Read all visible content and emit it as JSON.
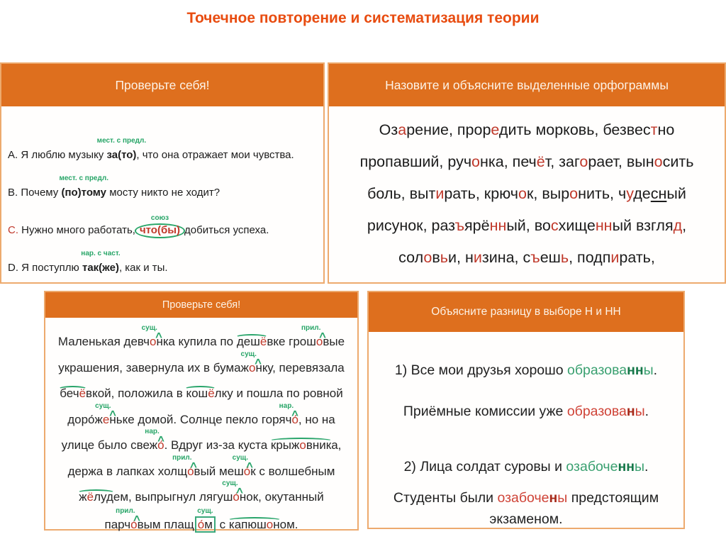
{
  "title": "Точечное повторение и систематизация теории",
  "colors": {
    "title_red": "#e84c10",
    "header_orange": "#de6f1e",
    "panel_border": "#edaa6e",
    "highlight_red": "#c0392b",
    "annotation_green": "#27a567",
    "word_green": "#3aa070",
    "word_green_bold": "#17784a",
    "word_red": "#cf4337",
    "word_red_bold": "#a62a1a"
  },
  "panels": {
    "quiz": {
      "header": "Проверьте себя!",
      "lines": [
        [
          {
            "t": "A. Я люблю музыку "
          },
          {
            "t": "за(то)",
            "b": true,
            "ann": "мест. с предл."
          },
          {
            "t": ", что она отражает мои чувства."
          }
        ],
        [
          {
            "t": "B. Почему "
          },
          {
            "t": "(по)тому",
            "b": true,
            "ann": "мест. с предл."
          },
          {
            "t": " мосту никто не ходит?"
          }
        ],
        [
          {
            "t": "C.",
            "c": "red"
          },
          {
            "t": " Нужно много работать,"
          },
          {
            "ellipse": true,
            "ann": "союз",
            "parts": [
              {
                "t": "что(бы)",
                "c": "red",
                "b": true
              }
            ]
          },
          {
            "t": "добиться успеха."
          }
        ],
        [
          {
            "t": "D. Я поступлю "
          },
          {
            "t": "так(же)",
            "b": true,
            "ann": "нар. с част."
          },
          {
            "t": ", как и ты."
          }
        ]
      ]
    },
    "orthograms": {
      "header": "Назовите и объясните выделенные орфограммы",
      "lines": [
        [
          {
            "t": "Оз"
          },
          {
            "t": "а",
            "c": "red"
          },
          {
            "t": "рение, прор"
          },
          {
            "t": "е",
            "c": "red"
          },
          {
            "t": "дить морковь, безвес"
          },
          {
            "t": "т",
            "c": "red"
          },
          {
            "t": "но"
          }
        ],
        [
          {
            "t": "пропавший, руч"
          },
          {
            "t": "о",
            "c": "red"
          },
          {
            "t": "нка, печ"
          },
          {
            "t": "ё",
            "c": "red"
          },
          {
            "t": "т, заг"
          },
          {
            "t": "о",
            "c": "red"
          },
          {
            "t": "рает, вын"
          },
          {
            "t": "о",
            "c": "red"
          },
          {
            "t": "сить"
          }
        ],
        [
          {
            "t": "боль, выт"
          },
          {
            "t": "и",
            "c": "red"
          },
          {
            "t": "рать, крюч"
          },
          {
            "t": "о",
            "c": "red"
          },
          {
            "t": "к, выр"
          },
          {
            "t": "о",
            "c": "red"
          },
          {
            "t": "нить, ч"
          },
          {
            "t": "у",
            "c": "red"
          },
          {
            "t": "де"
          },
          {
            "t": "сн",
            "u": true
          },
          {
            "t": "ый"
          }
        ],
        [
          {
            "t": "рисунок, раз"
          },
          {
            "t": "ъ",
            "c": "red"
          },
          {
            "t": "ярё"
          },
          {
            "t": "нн",
            "c": "red"
          },
          {
            "t": "ый, во"
          },
          {
            "t": "с",
            "c": "red"
          },
          {
            "t": "хище"
          },
          {
            "t": "нн",
            "c": "red"
          },
          {
            "t": "ый взгля"
          },
          {
            "t": "д",
            "c": "red"
          },
          {
            "t": ","
          }
        ],
        [
          {
            "t": "сол"
          },
          {
            "t": "о",
            "c": "red"
          },
          {
            "t": "в"
          },
          {
            "t": "ь",
            "c": "red"
          },
          {
            "t": "и, н"
          },
          {
            "t": "и",
            "c": "red"
          },
          {
            "t": "зина, с"
          },
          {
            "t": "ъ",
            "c": "red"
          },
          {
            "t": "еш"
          },
          {
            "t": "ь",
            "c": "red"
          },
          {
            "t": ", подп"
          },
          {
            "t": "и",
            "c": "red"
          },
          {
            "t": "рать,"
          }
        ]
      ]
    },
    "dictation": {
      "header": "Проверьте себя!",
      "lines": [
        [
          {
            "t": "Маленькая девч"
          },
          {
            "ann": "сущ.",
            "caret": true,
            "parts": [
              {
                "t": "о",
                "c": "red"
              },
              {
                "t": "нк"
              }
            ]
          },
          {
            "t": "а купила по "
          },
          {
            "arc": true,
            "parts": [
              {
                "t": "деш"
              },
              {
                "t": "ё",
                "c": "red"
              }
            ]
          },
          {
            "t": "вке грош"
          },
          {
            "ann": "прил.",
            "caret": true,
            "parts": [
              {
                "t": "о",
                "c": "red"
              },
              {
                "t": "в"
              }
            ]
          },
          {
            "t": "ые"
          }
        ],
        [
          {
            "t": "украшения, завернула их в бумаж"
          },
          {
            "ann": "сущ.",
            "caret": true,
            "parts": [
              {
                "t": "о",
                "c": "red"
              },
              {
                "t": "нк"
              }
            ]
          },
          {
            "t": "у, перевязала"
          }
        ],
        [
          {
            "arc": true,
            "parts": [
              {
                "t": "беч"
              },
              {
                "t": "ё",
                "c": "red"
              }
            ]
          },
          {
            "t": "вкой, положила в "
          },
          {
            "arc": true,
            "parts": [
              {
                "t": "кош"
              },
              {
                "t": "ё",
                "c": "red"
              }
            ]
          },
          {
            "t": "лку и пошла по ровной"
          }
        ],
        [
          {
            "t": "доро́ж"
          },
          {
            "ann": "сущ.",
            "caret": true,
            "parts": [
              {
                "t": "е",
                "c": "red"
              },
              {
                "t": "нь"
              }
            ]
          },
          {
            "t": "ке домой. Солнце пекло горяч"
          },
          {
            "ann": "нар.",
            "caret": true,
            "parts": [
              {
                "t": "о́",
                "c": "red"
              }
            ]
          },
          {
            "t": ", но на"
          }
        ],
        [
          {
            "t": "улице было свеж"
          },
          {
            "ann": "нар.",
            "caret": true,
            "parts": [
              {
                "t": "о́",
                "c": "red"
              }
            ]
          },
          {
            "t": ". Вдруг из-за куста "
          },
          {
            "arc": true,
            "parts": [
              {
                "t": "крыж"
              },
              {
                "t": "о",
                "c": "red"
              },
              {
                "t": "вник"
              }
            ]
          },
          {
            "t": "а,"
          }
        ],
        [
          {
            "t": "держа в лапках холщ"
          },
          {
            "ann": "прил.",
            "caret": true,
            "parts": [
              {
                "t": "о́",
                "c": "red"
              },
              {
                "t": "в"
              }
            ]
          },
          {
            "t": "ый меш"
          },
          {
            "ann": "сущ.",
            "caret": true,
            "parts": [
              {
                "t": "о́",
                "c": "red"
              },
              {
                "t": "к"
              }
            ]
          },
          {
            "t": " с волшебным"
          }
        ],
        [
          {
            "arc": true,
            "parts": [
              {
                "t": "ж"
              },
              {
                "t": "ё",
                "c": "red"
              },
              {
                "t": "луд"
              }
            ]
          },
          {
            "t": "ем, выпрыгнул лягуш"
          },
          {
            "ann": "сущ.",
            "caret": true,
            "parts": [
              {
                "t": "о́",
                "c": "red"
              },
              {
                "t": "н"
              }
            ]
          },
          {
            "t": "ок, окутанный"
          }
        ],
        [
          {
            "t": "парч"
          },
          {
            "ann": "прил.",
            "caret": true,
            "parts": [
              {
                "t": "о́",
                "c": "red"
              },
              {
                "t": "в"
              }
            ]
          },
          {
            "t": "ым плащ"
          },
          {
            "ann": "сущ.",
            "box": true,
            "parts": [
              {
                "t": "о́",
                "c": "red"
              },
              {
                "t": "м"
              }
            ]
          },
          {
            "t": " с "
          },
          {
            "arc": true,
            "parts": [
              {
                "t": "капюш"
              },
              {
                "t": "о",
                "c": "red"
              },
              {
                "t": "н"
              }
            ]
          },
          {
            "t": "ом."
          }
        ]
      ]
    },
    "nn_choice": {
      "header": "Объясните разницу в выборе Н и НН",
      "lines": [
        [
          {
            "t": "1) Все мои друзья хорошо "
          },
          {
            "t": "образова",
            "c": "gw"
          },
          {
            "t": "нн",
            "c": "gb"
          },
          {
            "t": "ы",
            "c": "gw"
          },
          {
            "t": "."
          }
        ],
        [
          {
            "t": "Приёмные комиссии уже "
          },
          {
            "t": "образова",
            "c": "rw"
          },
          {
            "t": "н",
            "c": "rb"
          },
          {
            "t": "ы",
            "c": "rw"
          },
          {
            "t": "."
          }
        ],
        [
          {
            "t": "2) Лица солдат суровы и "
          },
          {
            "t": "озабоче",
            "c": "gw"
          },
          {
            "t": "нн",
            "c": "gb"
          },
          {
            "t": "ы",
            "c": "gw"
          },
          {
            "t": "."
          }
        ],
        [
          {
            "t": "Студенты были "
          },
          {
            "t": "озабоче",
            "c": "rw"
          },
          {
            "t": "н",
            "c": "rb"
          },
          {
            "t": "ы",
            "c": "rw"
          },
          {
            "t": " предстоящим"
          }
        ],
        [
          {
            "t": "экзаменом."
          }
        ]
      ]
    }
  }
}
